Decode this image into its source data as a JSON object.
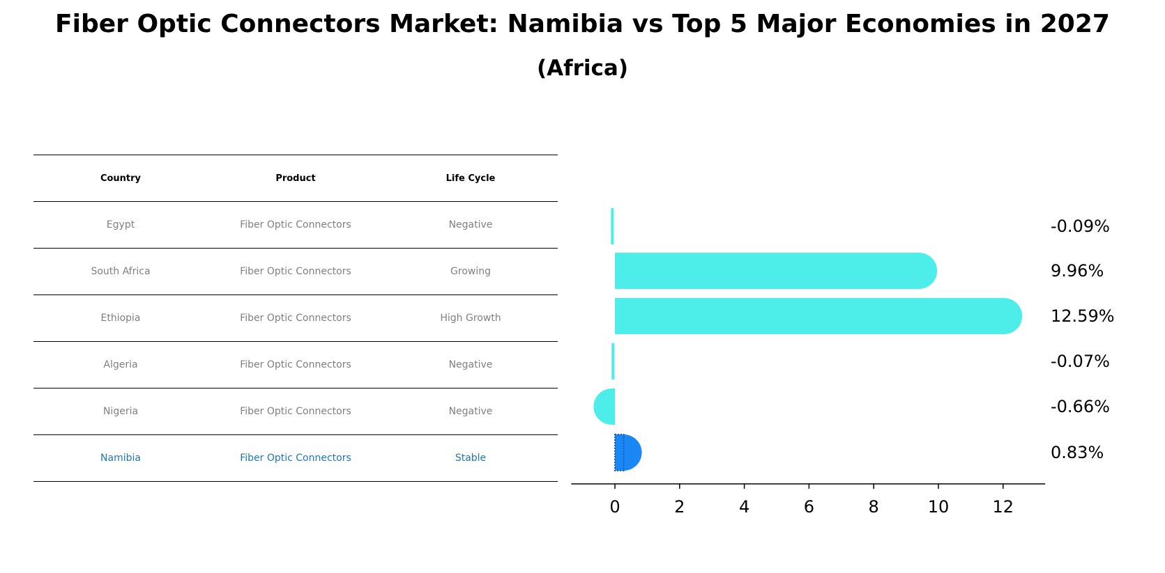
{
  "title": "Fiber Optic Connectors Market: Namibia vs Top 5 Major Economies in 2027",
  "subtitle": "(Africa)",
  "table": {
    "headers": [
      "Country",
      "Product",
      "Life Cycle"
    ],
    "rows": [
      {
        "country": "Egypt",
        "product": "Fiber Optic Connectors",
        "life_cycle": "Negative"
      },
      {
        "country": "South Africa",
        "product": "Fiber Optic Connectors",
        "life_cycle": "Growing"
      },
      {
        "country": "Ethiopia",
        "product": "Fiber Optic Connectors",
        "life_cycle": "High Growth"
      },
      {
        "country": "Algeria",
        "product": "Fiber Optic Connectors",
        "life_cycle": "Negative"
      },
      {
        "country": "Nigeria",
        "product": "Fiber Optic Connectors",
        "life_cycle": "Negative"
      },
      {
        "country": "Namibia",
        "product": "Fiber Optic Connectors",
        "life_cycle": "Stable"
      }
    ]
  },
  "colors": {
    "bar": "#4deeea",
    "highlight": "#1a87f5",
    "highlight_text": "#1f77b4",
    "muted_text": "#7f7f7f"
  },
  "chart_data": {
    "type": "bar",
    "orientation": "horizontal",
    "categories": [
      "Egypt",
      "South Africa",
      "Ethiopia",
      "Algeria",
      "Nigeria",
      "Namibia"
    ],
    "values": [
      -0.09,
      9.96,
      12.59,
      -0.07,
      -0.66,
      0.83
    ],
    "value_labels": [
      "-0.09%",
      "9.96%",
      "12.59%",
      "-0.07%",
      "-0.66%",
      "0.83%"
    ],
    "highlight": "Namibia",
    "xlim": [
      -1.35,
      13.3
    ],
    "xticks": [
      0,
      2,
      4,
      6,
      8,
      10,
      12
    ],
    "xtick_labels": [
      "0",
      "2",
      "4",
      "6",
      "8",
      "10",
      "12"
    ]
  }
}
